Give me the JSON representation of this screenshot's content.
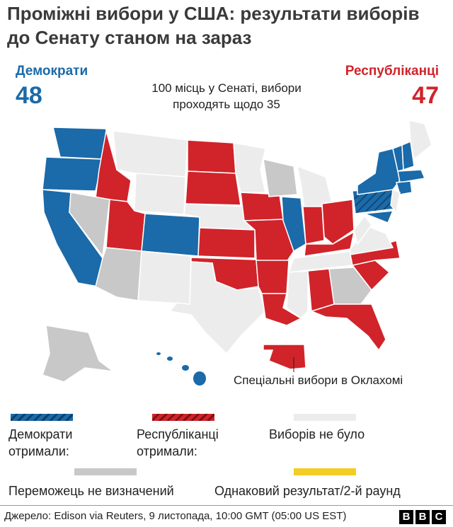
{
  "header": {
    "title": "Проміжні вибори у США: результати виборів до Сенату станом на зараз"
  },
  "seats": {
    "democrats": {
      "label": "Демократи",
      "count": 48
    },
    "republicans": {
      "label": "Республіканці",
      "count": 47
    },
    "note": "100 місць у Сенаті, вибори проходять щодо 35"
  },
  "map": {
    "annotation": "Спеціальні вибори в Оклахомі"
  },
  "legend": [
    {
      "label": "Демократи отримали:",
      "color": "#1b6aa9"
    },
    {
      "label": "Республіканці отримали:",
      "color": "#d1232a"
    },
    {
      "label": "Виборів не було",
      "color": "#ececec"
    },
    {
      "label": "Переможець не визначений",
      "color": "#c8c8c8"
    },
    {
      "label": "Однаковий результат/2-й раунд",
      "color": "#f4cc25"
    }
  ],
  "footer": {
    "source": "Джерело: Edison via Reuters, 9 листопада, 10:00 GMT (05:00 US EST)",
    "logo": [
      "B",
      "B",
      "C"
    ]
  }
}
